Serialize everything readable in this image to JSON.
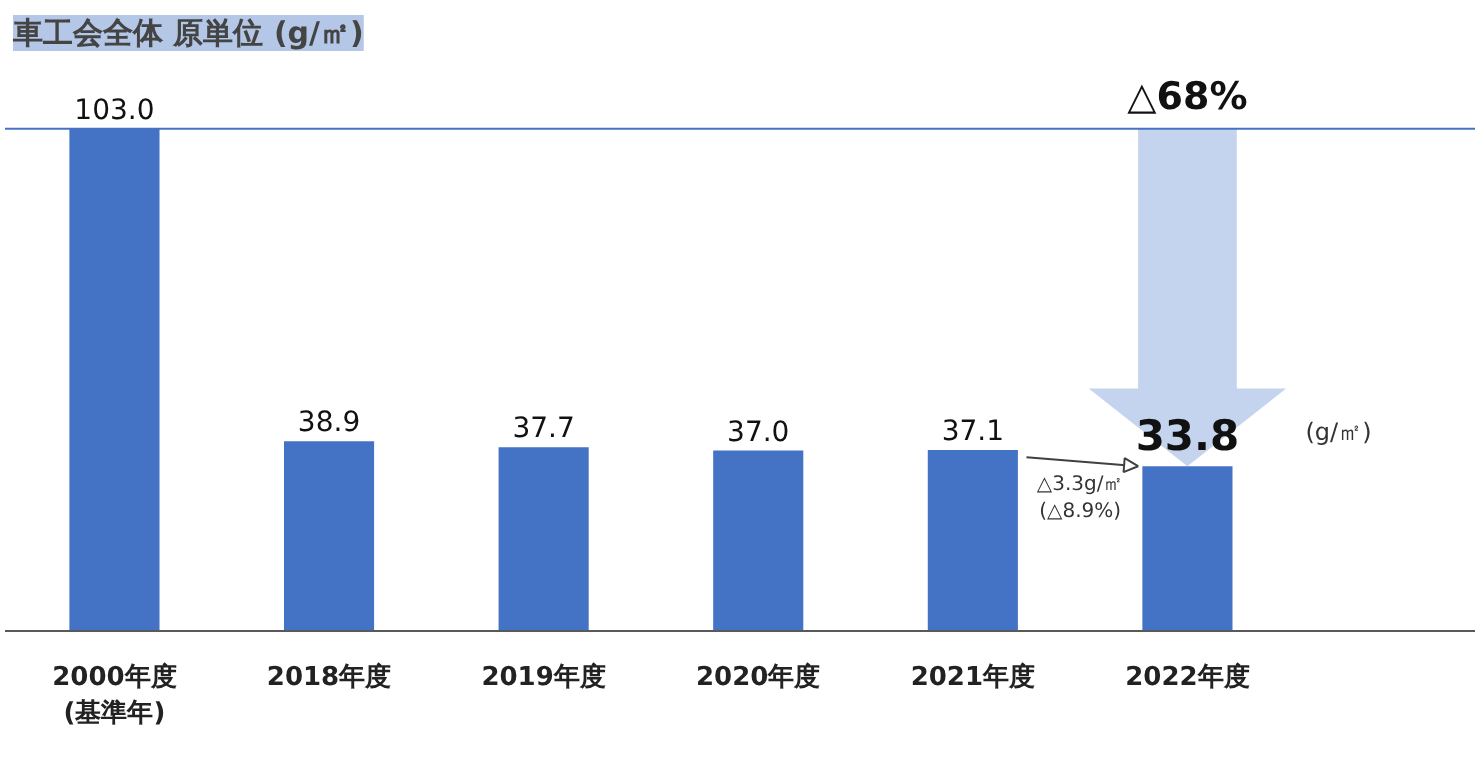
{
  "chart_data": {
    "type": "bar",
    "title": "車工会全体 原単位 (g/㎡)",
    "categories": [
      "2000年度\n(基準年)",
      "2018年度",
      "2019年度",
      "2020年度",
      "2021年度",
      "2022年度"
    ],
    "values": [
      103.0,
      38.9,
      37.7,
      37.0,
      37.1,
      33.8
    ],
    "value_labels": [
      "103.0",
      "38.9",
      "37.7",
      "37.0",
      "37.1",
      "33.8"
    ],
    "color": "#4472c4",
    "ref_lines": [
      {
        "axis": "y",
        "value": 103.0,
        "color": "#4472c4"
      }
    ],
    "annotations": [
      {
        "text": "△68%",
        "x": "2022年度",
        "y": 103.0
      },
      "(g/㎡)",
      "△3.3g/㎡\n(△8.9%)"
    ],
    "grid": false
  }
}
